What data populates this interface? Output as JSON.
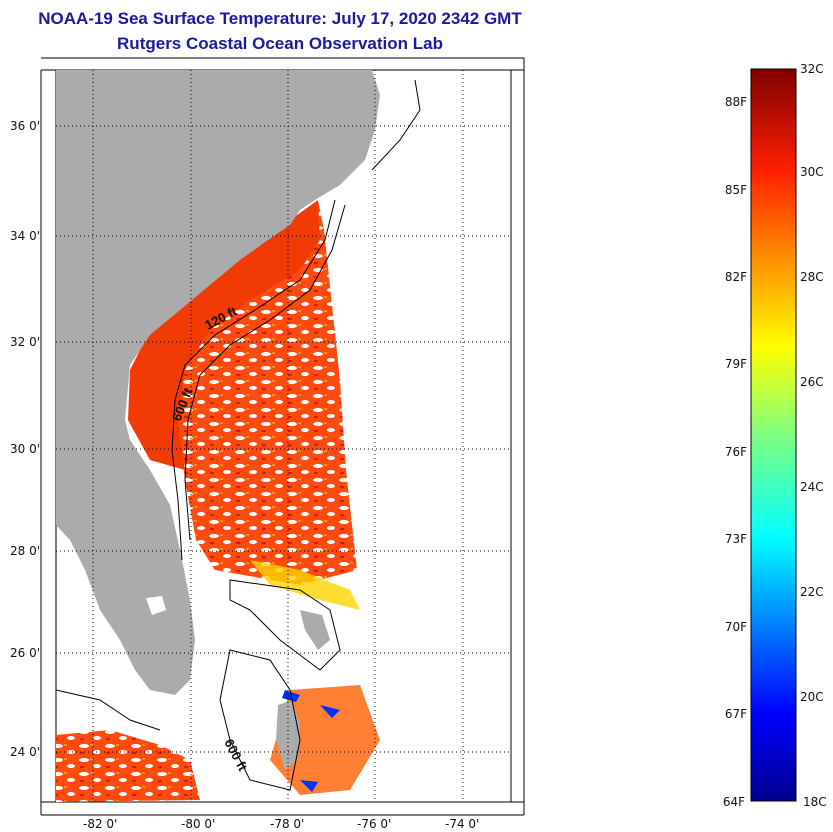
{
  "title": "NOAA-19 Sea Surface Temperature:  July 17, 2020 2342 GMT",
  "subtitle": "Rutgers Coastal Ocean Observation Lab",
  "map": {
    "lon_range": [
      -83,
      -73
    ],
    "lat_range": [
      23,
      37
    ],
    "lon_ticks": [
      "-82 0'",
      "-80 0'",
      "-78 0'",
      "-76 0'",
      "-74 0'"
    ],
    "lat_ticks": [
      "36 0'",
      "34 0'",
      "32 0'",
      "30 0'",
      "28 0'",
      "26 0'",
      "24 0'"
    ],
    "contour_labels": [
      "120 ft",
      "600 ft",
      "600 ft"
    ],
    "colors": {
      "land": "#ababab",
      "sst_warm": "#ff3c00",
      "sst_hot": "#e62000",
      "sst_mid": "#ff7a00"
    }
  },
  "colorbar": {
    "celsius_labels": [
      "32C",
      "30C",
      "28C",
      "26C",
      "24C",
      "22C",
      "20C",
      "18C"
    ],
    "fahrenheit_labels": [
      "88F",
      "85F",
      "82F",
      "79F",
      "76F",
      "73F",
      "70F",
      "67F",
      "64F"
    ],
    "range_c": [
      18,
      32
    ],
    "colormap": "jet"
  }
}
